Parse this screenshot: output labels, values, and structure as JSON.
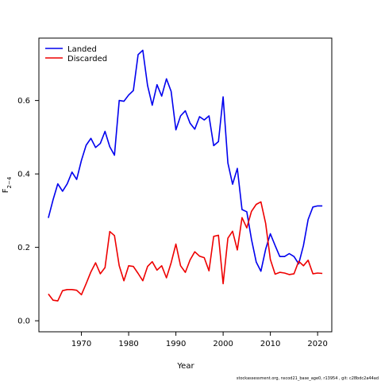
{
  "chart_data": {
    "type": "line",
    "xlabel": "Year",
    "ylabel": "F",
    "ylabel_sub": "2−4",
    "xlim": [
      1961,
      2023
    ],
    "ylim": [
      -0.03,
      0.77
    ],
    "x_ticks": [
      1970,
      1980,
      1990,
      2000,
      2010,
      2020
    ],
    "y_ticks": [
      0.0,
      0.2,
      0.4,
      0.6
    ],
    "y_tick_labels": [
      "0.0",
      "0.2",
      "0.4",
      "0.6"
    ],
    "grid": false,
    "legend_position": "top-left",
    "x": [
      1963,
      1964,
      1965,
      1966,
      1967,
      1968,
      1969,
      1970,
      1971,
      1972,
      1973,
      1974,
      1975,
      1976,
      1977,
      1978,
      1979,
      1980,
      1981,
      1982,
      1983,
      1984,
      1985,
      1986,
      1987,
      1988,
      1989,
      1990,
      1991,
      1992,
      1993,
      1994,
      1995,
      1996,
      1997,
      1998,
      1999,
      2000,
      2001,
      2002,
      2003,
      2004,
      2005,
      2006,
      2007,
      2008,
      2009,
      2010,
      2011,
      2012,
      2013,
      2014,
      2015,
      2016,
      2017,
      2018,
      2019,
      2020,
      2021
    ],
    "series": [
      {
        "name": "Landed",
        "color": "#0000ee",
        "values": [
          0.28,
          0.33,
          0.373,
          0.353,
          0.373,
          0.405,
          0.385,
          0.437,
          0.478,
          0.497,
          0.472,
          0.483,
          0.516,
          0.474,
          0.451,
          0.6,
          0.598,
          0.615,
          0.627,
          0.725,
          0.737,
          0.641,
          0.587,
          0.643,
          0.612,
          0.659,
          0.625,
          0.52,
          0.558,
          0.572,
          0.538,
          0.522,
          0.556,
          0.547,
          0.558,
          0.477,
          0.488,
          0.61,
          0.43,
          0.372,
          0.415,
          0.303,
          0.297,
          0.222,
          0.16,
          0.135,
          0.195,
          0.237,
          0.205,
          0.175,
          0.175,
          0.183,
          0.175,
          0.155,
          0.205,
          0.276,
          0.31,
          0.313,
          0.313
        ]
      },
      {
        "name": "Discarded",
        "color": "#ee0000",
        "values": [
          0.073,
          0.056,
          0.054,
          0.082,
          0.085,
          0.085,
          0.083,
          0.071,
          0.101,
          0.133,
          0.158,
          0.128,
          0.145,
          0.243,
          0.232,
          0.15,
          0.109,
          0.15,
          0.148,
          0.129,
          0.109,
          0.148,
          0.161,
          0.138,
          0.15,
          0.117,
          0.158,
          0.209,
          0.15,
          0.132,
          0.166,
          0.188,
          0.176,
          0.172,
          0.136,
          0.23,
          0.233,
          0.101,
          0.225,
          0.244,
          0.193,
          0.281,
          0.253,
          0.298,
          0.317,
          0.324,
          0.265,
          0.167,
          0.127,
          0.132,
          0.13,
          0.126,
          0.128,
          0.162,
          0.15,
          0.165,
          0.128,
          0.13,
          0.129
        ]
      }
    ]
  },
  "footer": "stockassessment.org, nscod21_base_age0, r13954 , git: c28bdc2a44ad"
}
